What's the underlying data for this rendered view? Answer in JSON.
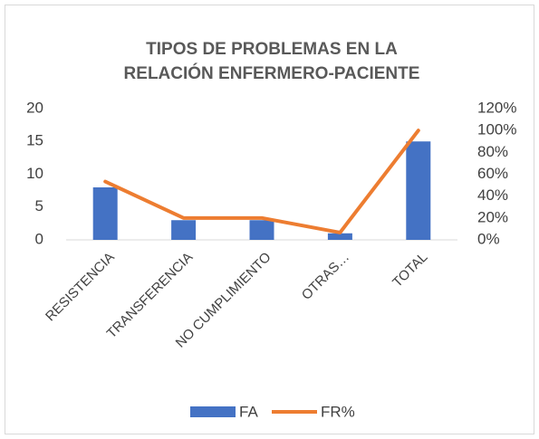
{
  "chart_data": {
    "type": "bar-line",
    "title": [
      "TIPOS DE PROBLEMAS EN LA",
      "RELACIÓN ENFERMERO-PACIENTE"
    ],
    "categories": [
      "RESISTENCIA",
      "TRANSFERENCIA",
      "NO CUMPLIMIENTO",
      "OTRAS…",
      "TOTAL"
    ],
    "series": [
      {
        "name": "FA",
        "type": "bar",
        "color": "#4472c4",
        "values": [
          8,
          3,
          3,
          1,
          15
        ]
      },
      {
        "name": "FR%",
        "type": "line",
        "axis": "y2",
        "color": "#ed7d31",
        "values": [
          53.3,
          20,
          20,
          6.7,
          100
        ]
      }
    ],
    "ylim": [
      0,
      20
    ],
    "yticks": [
      0,
      5,
      10,
      15,
      20
    ],
    "y2lim": [
      0,
      120
    ],
    "y2ticks": [
      {
        "value": 0,
        "label": "0%"
      },
      {
        "value": 20,
        "label": "20%"
      },
      {
        "value": 40,
        "label": "40%"
      },
      {
        "value": 60,
        "label": "60%"
      },
      {
        "value": 80,
        "label": "80%"
      },
      {
        "value": 100,
        "label": "100%"
      },
      {
        "value": 120,
        "label": "120%"
      }
    ],
    "grid": false,
    "legend": "bottom"
  }
}
